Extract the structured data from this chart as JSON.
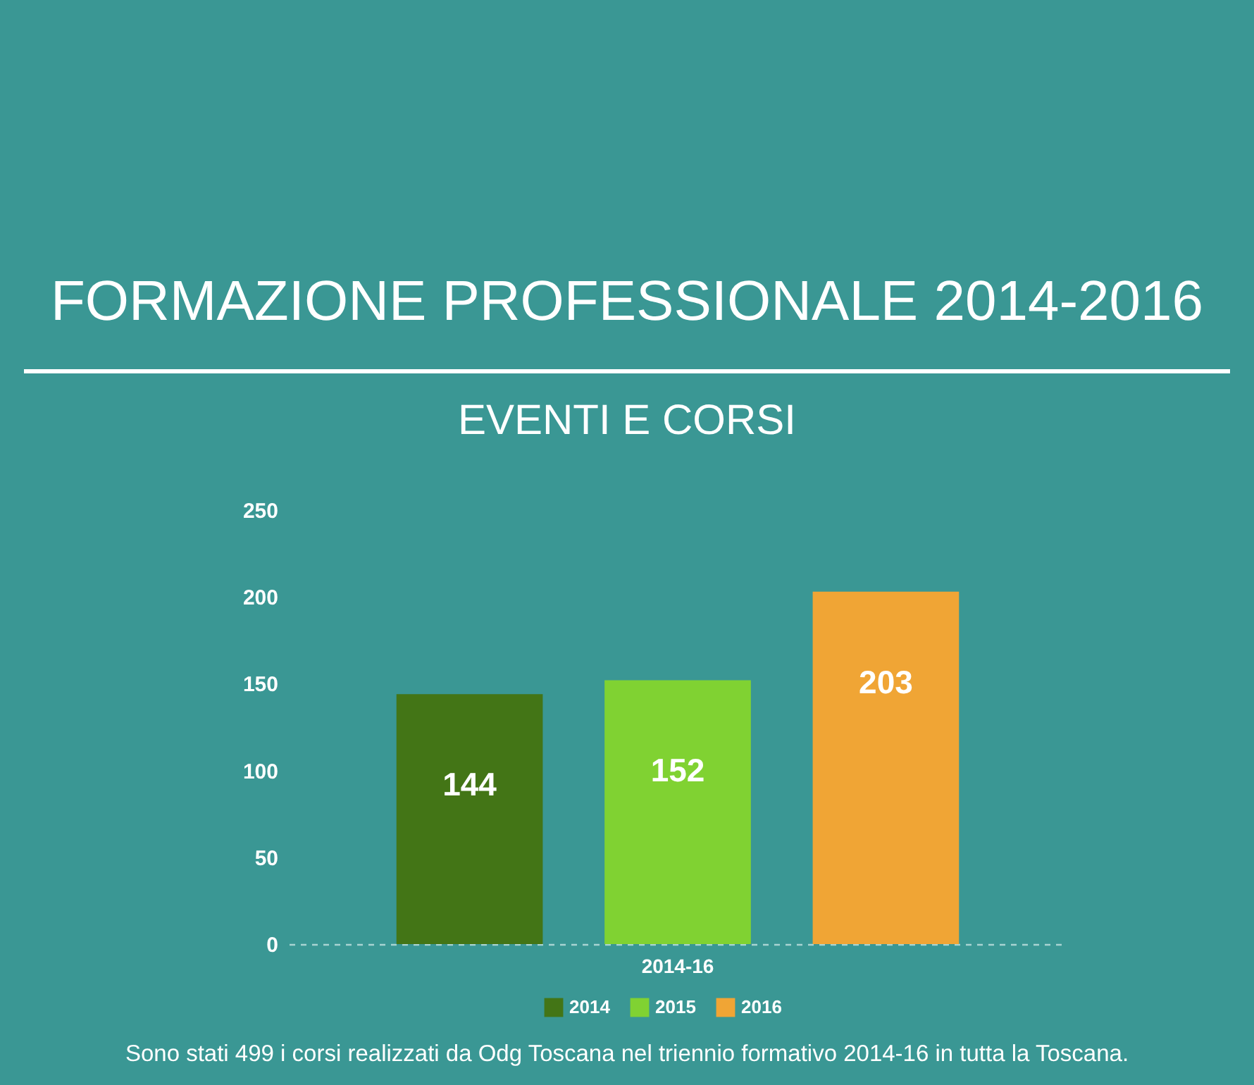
{
  "chart_data": {
    "type": "bar",
    "title": "FORMAZIONE PROFESSIONALE 2014-2016",
    "subtitle": "EVENTI E CORSI",
    "categories": [
      "2014-16"
    ],
    "series": [
      {
        "name": "2014",
        "color": "#437516",
        "values": [
          144
        ]
      },
      {
        "name": "2015",
        "color": "#80d232",
        "values": [
          152
        ]
      },
      {
        "name": "2016",
        "color": "#f0a535",
        "values": [
          203
        ]
      }
    ],
    "ylim": [
      0,
      250
    ],
    "yticks": [
      0,
      50,
      100,
      150,
      200,
      250
    ],
    "grid": false,
    "legend": "bottom",
    "data_labels": true,
    "annotations": [
      "Sono stati 499 i corsi realizzati da Odg Toscana nel triennio formativo 2014-16 in tutta la Toscana."
    ]
  }
}
